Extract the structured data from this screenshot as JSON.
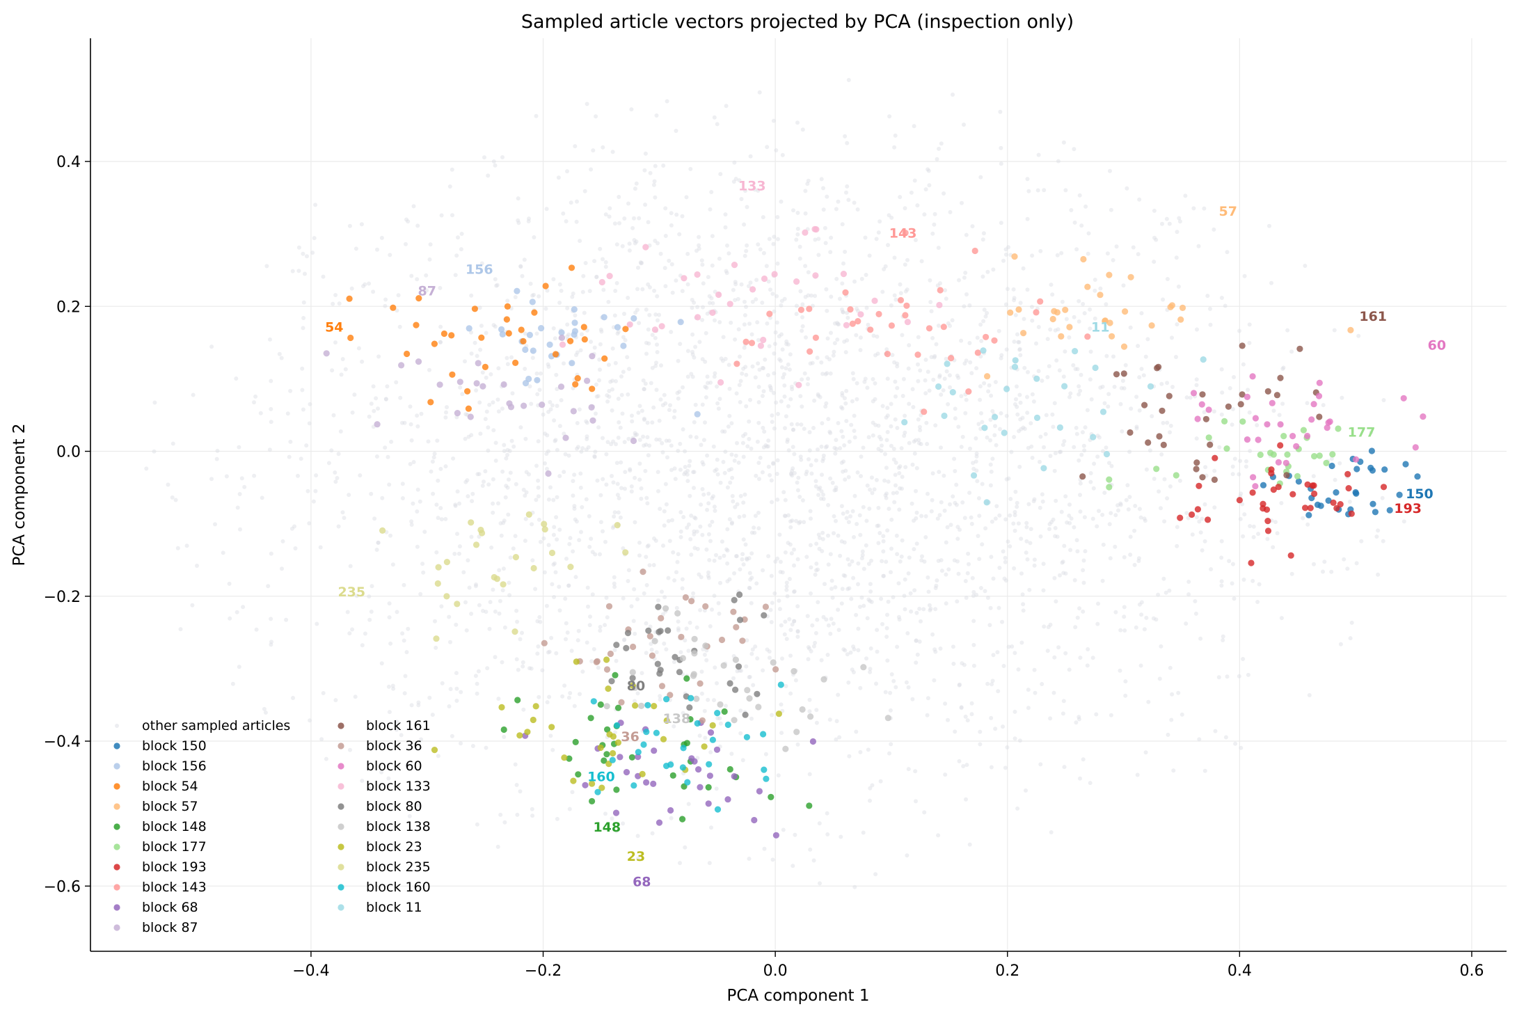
{
  "chart_data": {
    "type": "scatter",
    "title": "Sampled article vectors projected by PCA (inspection only)",
    "xlabel": "PCA component 1",
    "ylabel": "PCA component 2",
    "xlim": [
      -0.59,
      0.63
    ],
    "ylim": [
      -0.69,
      0.57
    ],
    "x_ticks": [
      -0.4,
      -0.2,
      0.0,
      0.2,
      0.4,
      0.6
    ],
    "x_tick_labels": [
      "−0.4",
      "−0.2",
      "0.0",
      "0.2",
      "0.4",
      "0.6"
    ],
    "y_ticks": [
      -0.6,
      -0.4,
      -0.2,
      0.0,
      0.2,
      0.4
    ],
    "y_tick_labels": [
      "−0.6",
      "−0.4",
      "−0.2",
      "0.0",
      "0.2",
      "0.4"
    ],
    "grid": true,
    "legend_position": "lower-left",
    "background_series": {
      "name": "other sampled articles",
      "color": "#d9dbe3",
      "approx_count": 3000,
      "x_range": [
        -0.55,
        0.55
      ],
      "y_range": [
        -0.62,
        0.52
      ]
    },
    "series": [
      {
        "name": "block 150",
        "label": "150",
        "color": "#1f77b4",
        "center": [
          0.49,
          -0.06
        ],
        "spread": [
          0.05,
          0.05
        ],
        "n": 30,
        "label_pos": [
          0.555,
          -0.065
        ]
      },
      {
        "name": "block 156",
        "label": "156",
        "color": "#aec7e8",
        "center": [
          -0.19,
          0.16
        ],
        "spread": [
          0.08,
          0.06
        ],
        "n": 28,
        "label_pos": [
          -0.255,
          0.245
        ]
      },
      {
        "name": "block 54",
        "label": "54",
        "color": "#ff7f0e",
        "center": [
          -0.25,
          0.14
        ],
        "spread": [
          0.12,
          0.08
        ],
        "n": 34,
        "label_pos": [
          -0.38,
          0.165
        ]
      },
      {
        "name": "block 57",
        "label": "57",
        "color": "#ffbb78",
        "center": [
          0.29,
          0.2
        ],
        "spread": [
          0.08,
          0.06
        ],
        "n": 28,
        "label_pos": [
          0.39,
          0.325
        ]
      },
      {
        "name": "block 148",
        "label": "148",
        "color": "#2ca02c",
        "center": [
          -0.1,
          -0.42
        ],
        "spread": [
          0.09,
          0.08
        ],
        "n": 32,
        "label_pos": [
          -0.145,
          -0.525
        ]
      },
      {
        "name": "block 177",
        "label": "177",
        "color": "#98df8a",
        "center": [
          0.42,
          0.0
        ],
        "spread": [
          0.08,
          0.07
        ],
        "n": 26,
        "label_pos": [
          0.505,
          0.02
        ]
      },
      {
        "name": "block 193",
        "label": "193",
        "color": "#d62728",
        "center": [
          0.43,
          -0.07
        ],
        "spread": [
          0.08,
          0.05
        ],
        "n": 34,
        "label_pos": [
          0.545,
          -0.085
        ]
      },
      {
        "name": "block 143",
        "label": "143",
        "color": "#ff9896",
        "center": [
          0.1,
          0.17
        ],
        "spread": [
          0.11,
          0.08
        ],
        "n": 34,
        "label_pos": [
          0.11,
          0.295
        ]
      },
      {
        "name": "block 68",
        "label": "68",
        "color": "#9467bd",
        "center": [
          -0.08,
          -0.45
        ],
        "spread": [
          0.1,
          0.08
        ],
        "n": 30,
        "label_pos": [
          -0.115,
          -0.6
        ]
      },
      {
        "name": "block 87",
        "label": "87",
        "color": "#c5b0d5",
        "center": [
          -0.26,
          0.07
        ],
        "spread": [
          0.1,
          0.08
        ],
        "n": 26,
        "label_pos": [
          -0.3,
          0.215
        ]
      },
      {
        "name": "block 161",
        "label": "161",
        "color": "#8c564b",
        "center": [
          0.37,
          0.05
        ],
        "spread": [
          0.09,
          0.08
        ],
        "n": 30,
        "label_pos": [
          0.515,
          0.18
        ]
      },
      {
        "name": "block 36",
        "label": "36",
        "color": "#c49c94",
        "center": [
          -0.09,
          -0.27
        ],
        "spread": [
          0.08,
          0.07
        ],
        "n": 30,
        "label_pos": [
          -0.125,
          -0.4
        ]
      },
      {
        "name": "block 60",
        "label": "60",
        "color": "#e377c2",
        "center": [
          0.45,
          0.03
        ],
        "spread": [
          0.07,
          0.06
        ],
        "n": 30,
        "label_pos": [
          0.57,
          0.14
        ]
      },
      {
        "name": "block 133",
        "label": "133",
        "color": "#f7b6d2",
        "center": [
          -0.02,
          0.2
        ],
        "spread": [
          0.13,
          0.08
        ],
        "n": 32,
        "label_pos": [
          -0.02,
          0.36
        ]
      },
      {
        "name": "block 80",
        "label": "80",
        "color": "#7f7f7f",
        "center": [
          -0.08,
          -0.28
        ],
        "spread": [
          0.08,
          0.07
        ],
        "n": 28,
        "label_pos": [
          -0.12,
          -0.33
        ]
      },
      {
        "name": "block 138",
        "label": "138",
        "color": "#c7c7c7",
        "center": [
          -0.04,
          -0.3
        ],
        "spread": [
          0.1,
          0.08
        ],
        "n": 30,
        "label_pos": [
          -0.085,
          -0.375
        ]
      },
      {
        "name": "block 23",
        "label": "23",
        "color": "#bcbd22",
        "center": [
          -0.14,
          -0.38
        ],
        "spread": [
          0.1,
          0.08
        ],
        "n": 30,
        "label_pos": [
          -0.12,
          -0.565
        ]
      },
      {
        "name": "block 235",
        "label": "235",
        "color": "#dbdb8d",
        "center": [
          -0.22,
          -0.16
        ],
        "spread": [
          0.09,
          0.07
        ],
        "n": 24,
        "label_pos": [
          -0.365,
          -0.2
        ]
      },
      {
        "name": "block 160",
        "label": "160",
        "color": "#17becf",
        "center": [
          -0.08,
          -0.4
        ],
        "spread": [
          0.08,
          0.07
        ],
        "n": 28,
        "label_pos": [
          -0.15,
          -0.455
        ]
      },
      {
        "name": "block 11",
        "label": "11",
        "color": "#9edae5",
        "center": [
          0.22,
          0.06
        ],
        "spread": [
          0.1,
          0.08
        ],
        "n": 26,
        "label_pos": [
          0.28,
          0.165
        ]
      }
    ]
  }
}
